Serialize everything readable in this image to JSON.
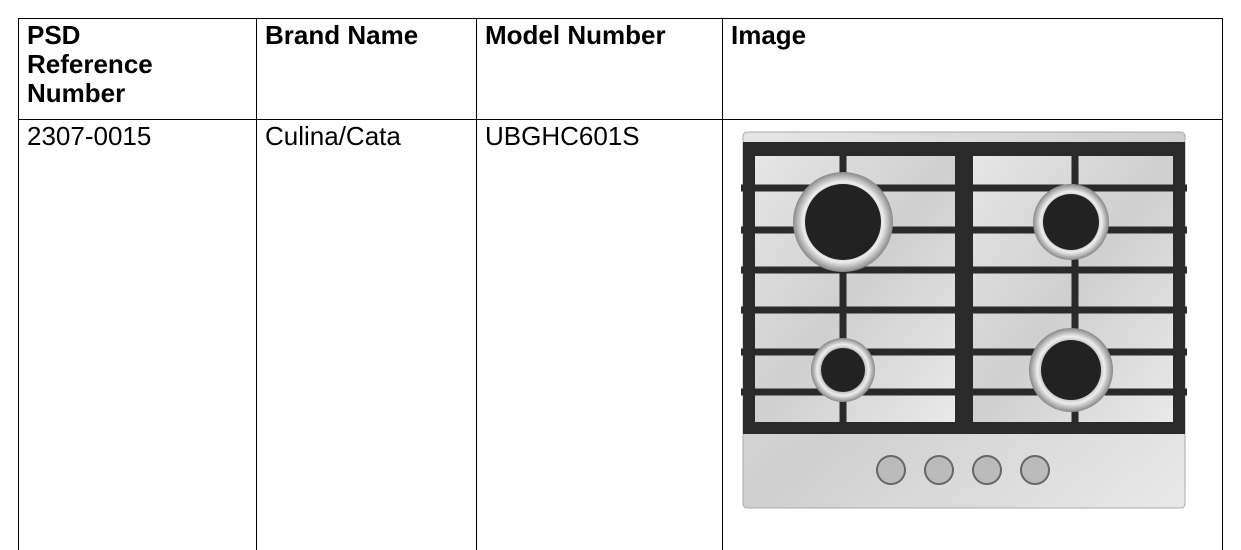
{
  "table": {
    "headers": [
      "PSD Reference Number",
      "Brand Name",
      "Model Number",
      "Image"
    ],
    "rows": [
      [
        "2307-0015",
        "Culina/Cata",
        "UBGHC601S"
      ]
    ]
  }
}
